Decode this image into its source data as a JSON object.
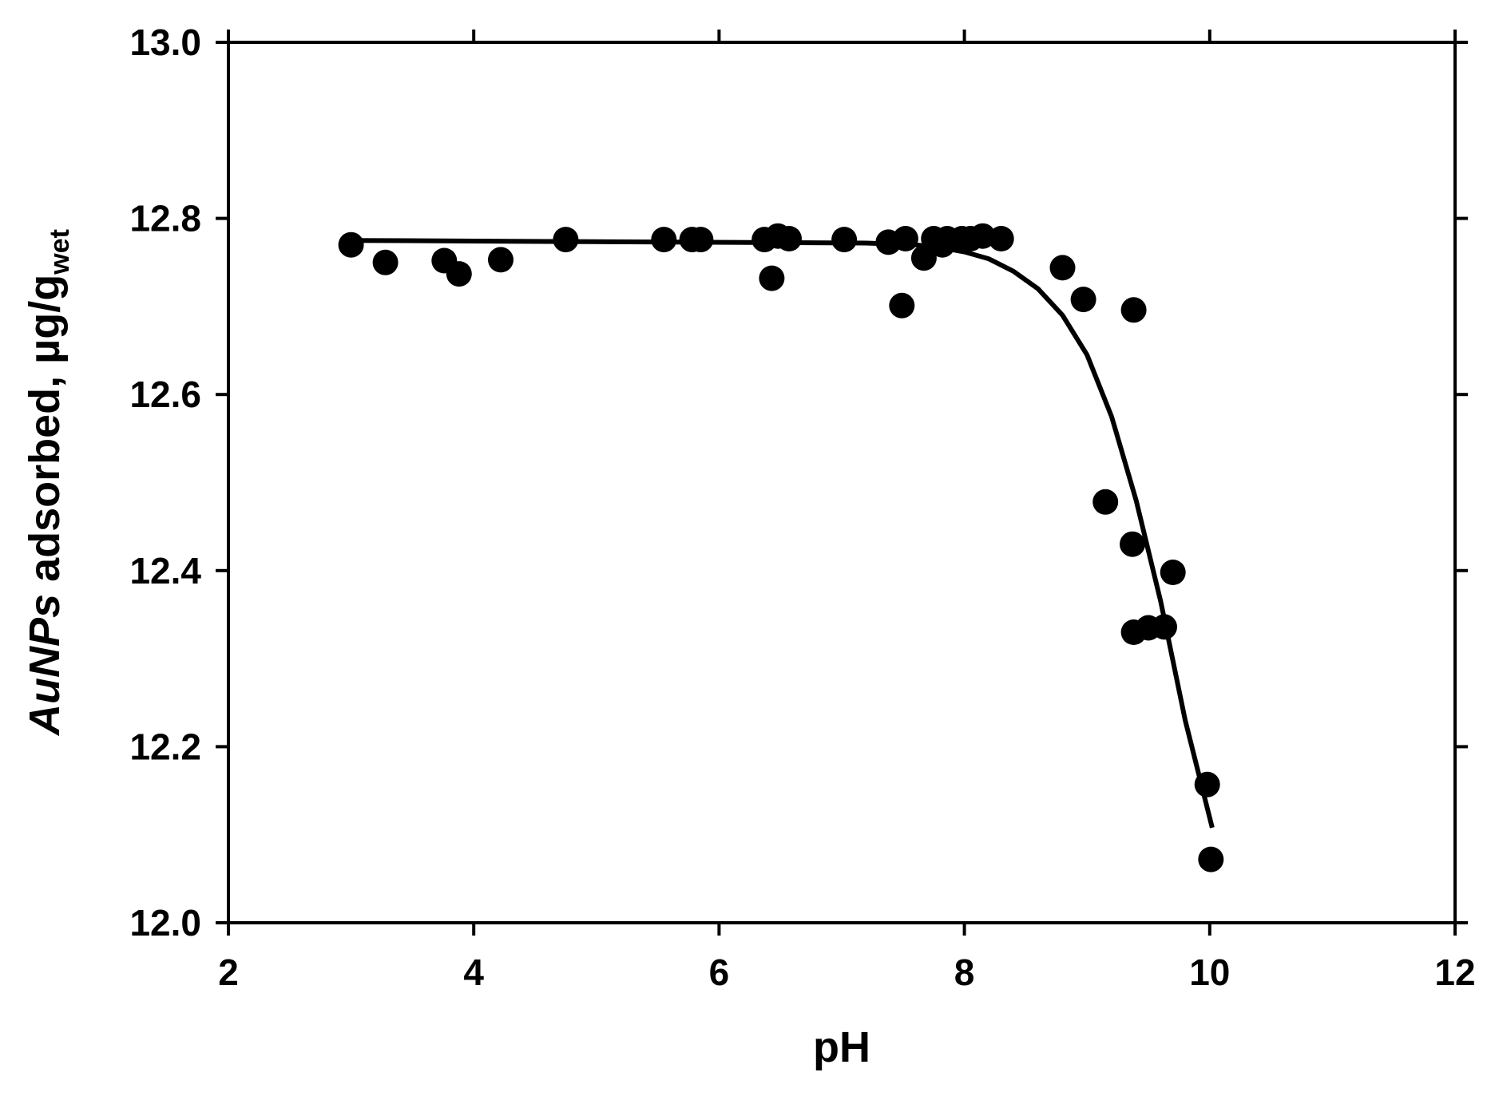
{
  "chart_data": {
    "type": "scatter",
    "xlabel": "pH",
    "ylabel": {
      "italic": "AuNPs",
      "text": " adsorbed, µg/g",
      "subscript": "wet"
    },
    "xlim": [
      2,
      12
    ],
    "ylim": [
      12.0,
      13.0
    ],
    "x_ticks": [
      "2",
      "4",
      "6",
      "8",
      "10",
      "12"
    ],
    "y_ticks": [
      "12.0",
      "12.2",
      "12.4",
      "12.6",
      "12.8",
      "13.0"
    ],
    "grid": false,
    "legend": "none",
    "marker_color": "#000000",
    "series": [
      {
        "type": "scatter",
        "points": [
          {
            "x": 3.0,
            "y": 12.77
          },
          {
            "x": 3.28,
            "y": 12.75
          },
          {
            "x": 3.76,
            "y": 12.752
          },
          {
            "x": 3.88,
            "y": 12.737
          },
          {
            "x": 4.22,
            "y": 12.753
          },
          {
            "x": 4.75,
            "y": 12.776
          },
          {
            "x": 5.55,
            "y": 12.776
          },
          {
            "x": 5.78,
            "y": 12.776
          },
          {
            "x": 5.85,
            "y": 12.776
          },
          {
            "x": 6.37,
            "y": 12.776
          },
          {
            "x": 6.43,
            "y": 12.732
          },
          {
            "x": 6.48,
            "y": 12.78
          },
          {
            "x": 6.57,
            "y": 12.777
          },
          {
            "x": 7.02,
            "y": 12.776
          },
          {
            "x": 7.38,
            "y": 12.773
          },
          {
            "x": 7.49,
            "y": 12.701
          },
          {
            "x": 7.52,
            "y": 12.777
          },
          {
            "x": 7.67,
            "y": 12.755
          },
          {
            "x": 7.75,
            "y": 12.777
          },
          {
            "x": 7.82,
            "y": 12.77
          },
          {
            "x": 7.86,
            "y": 12.777
          },
          {
            "x": 7.98,
            "y": 12.777
          },
          {
            "x": 8.05,
            "y": 12.777
          },
          {
            "x": 8.15,
            "y": 12.78
          },
          {
            "x": 8.3,
            "y": 12.777
          },
          {
            "x": 8.8,
            "y": 12.744
          },
          {
            "x": 8.97,
            "y": 12.708
          },
          {
            "x": 9.38,
            "y": 12.696
          },
          {
            "x": 9.15,
            "y": 12.478
          },
          {
            "x": 9.37,
            "y": 12.43
          },
          {
            "x": 9.38,
            "y": 12.33
          },
          {
            "x": 9.5,
            "y": 12.335
          },
          {
            "x": 9.63,
            "y": 12.336
          },
          {
            "x": 9.7,
            "y": 12.398
          },
          {
            "x": 9.98,
            "y": 12.157
          },
          {
            "x": 10.01,
            "y": 12.072
          }
        ]
      },
      {
        "type": "line",
        "points": [
          {
            "x": 3.0,
            "y": 12.775
          },
          {
            "x": 7.2,
            "y": 12.772
          },
          {
            "x": 7.6,
            "y": 12.77
          },
          {
            "x": 7.8,
            "y": 12.767
          },
          {
            "x": 8.0,
            "y": 12.762
          },
          {
            "x": 8.2,
            "y": 12.754
          },
          {
            "x": 8.4,
            "y": 12.74
          },
          {
            "x": 8.6,
            "y": 12.72
          },
          {
            "x": 8.8,
            "y": 12.69
          },
          {
            "x": 9.0,
            "y": 12.645
          },
          {
            "x": 9.2,
            "y": 12.575
          },
          {
            "x": 9.4,
            "y": 12.48
          },
          {
            "x": 9.6,
            "y": 12.365
          },
          {
            "x": 9.8,
            "y": 12.23
          },
          {
            "x": 10.02,
            "y": 12.108
          }
        ]
      }
    ]
  }
}
